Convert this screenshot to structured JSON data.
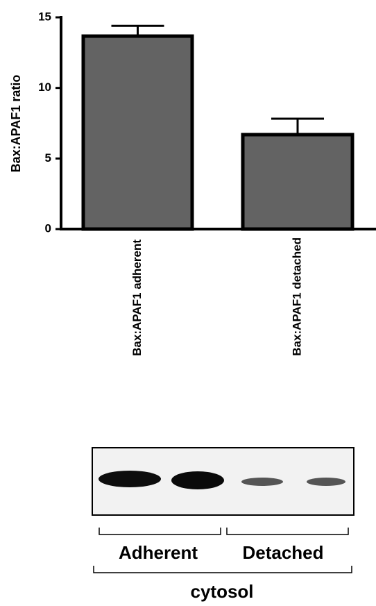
{
  "chart_data": {
    "type": "bar",
    "ylabel": "Bax:APAF1 ratio",
    "categories": [
      "Bax:APAF1 adherent",
      "Bax:APAF1 detached"
    ],
    "values": [
      13.67,
      6.69
    ],
    "errors": [
      0.73,
      1.13
    ],
    "color": "#636363",
    "ylim": [
      0,
      15
    ],
    "yticks": [
      0,
      5,
      10,
      15
    ]
  },
  "blot": {
    "groups": [
      "Adherent",
      "Detached"
    ],
    "compartment": "cytosol"
  }
}
